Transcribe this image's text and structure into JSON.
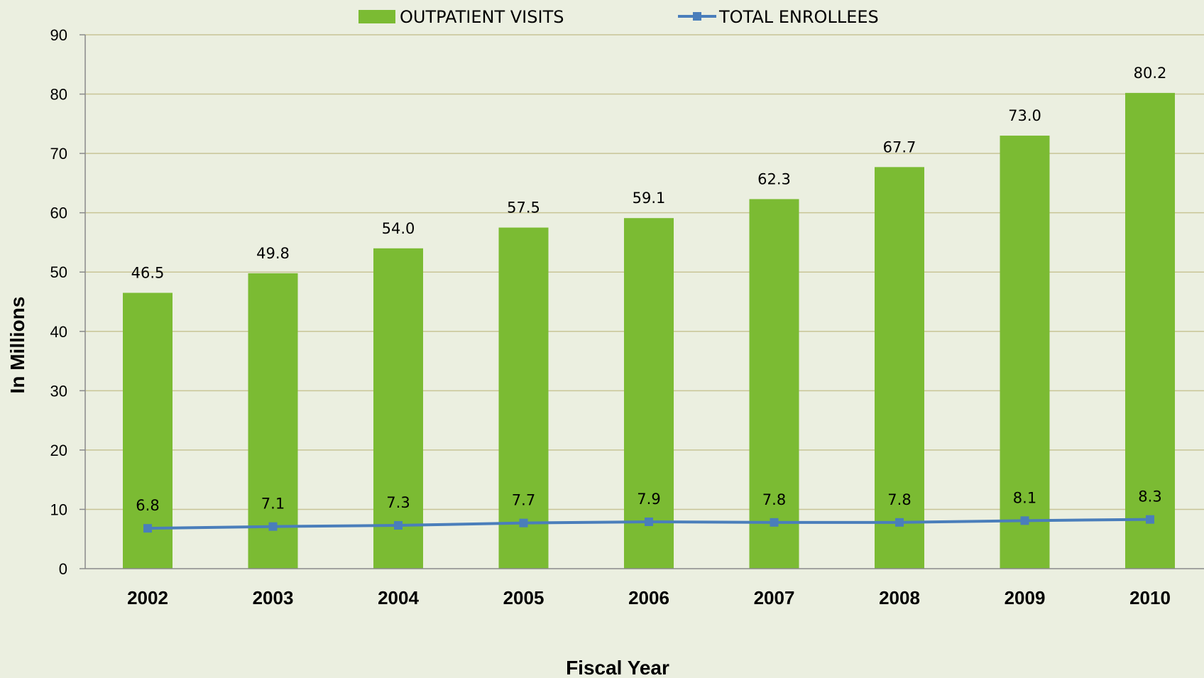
{
  "colors": {
    "background": "#ebefe0",
    "bar": "#7bbb33",
    "line": "#4a7ebb",
    "grid": "#c8c496",
    "axis": "#8a8a8a"
  },
  "chart_data": {
    "type": "bar",
    "categories": [
      "2002",
      "2003",
      "2004",
      "2005",
      "2006",
      "2007",
      "2008",
      "2009",
      "2010"
    ],
    "series": [
      {
        "name": "OUTPATIENT VISITS",
        "type": "bar",
        "color": "#7bbb33",
        "values": [
          46.5,
          49.8,
          54.0,
          57.5,
          59.1,
          62.3,
          67.7,
          73.0,
          80.2
        ],
        "labels": [
          "46.5",
          "49.8",
          "54.0",
          "57.5",
          "59.1",
          "62.3",
          "67.7",
          "73.0",
          "80.2"
        ]
      },
      {
        "name": "TOTAL ENROLLEES",
        "type": "line",
        "color": "#4a7ebb",
        "values": [
          6.8,
          7.1,
          7.3,
          7.7,
          7.9,
          7.8,
          7.8,
          8.1,
          8.3
        ],
        "labels": [
          "6.8",
          "7.1",
          "7.3",
          "7.7",
          "7.9",
          "7.8",
          "7.8",
          "8.1",
          "8.3"
        ]
      }
    ],
    "xlabel": "Fiscal Year",
    "ylabel": "In Millions",
    "ylim": [
      0,
      90
    ],
    "yticks": [
      "0",
      "10",
      "20",
      "30",
      "40",
      "50",
      "60",
      "70",
      "80",
      "90"
    ],
    "grid": true,
    "legend_position": "top"
  }
}
